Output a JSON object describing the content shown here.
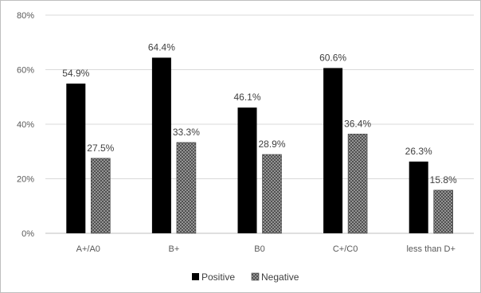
{
  "chart_data": {
    "type": "bar",
    "categories": [
      "A+/A0",
      "B+",
      "B0",
      "C+/C0",
      "less than D+"
    ],
    "series": [
      {
        "name": "Positive",
        "values": [
          54.9,
          64.4,
          46.1,
          60.6,
          26.3
        ],
        "labels": [
          "54.9%",
          "64.4%",
          "46.1%",
          "60.6%",
          "26.3%"
        ],
        "color": "#000000",
        "pattern": "solid"
      },
      {
        "name": "Negative",
        "values": [
          27.5,
          33.3,
          28.9,
          36.4,
          15.8
        ],
        "labels": [
          "27.5%",
          "33.3%",
          "28.9%",
          "36.4%",
          "15.8%"
        ],
        "color": "#7f7f7f",
        "pattern": "crosshatch"
      }
    ],
    "yticks": [
      0,
      20,
      40,
      60,
      80
    ],
    "ytick_labels": [
      "0%",
      "20%",
      "40%",
      "60%",
      "80%"
    ],
    "ylim": [
      0,
      80
    ],
    "grid": true,
    "legend_position": "bottom",
    "title": "",
    "xlabel": "",
    "ylabel": ""
  }
}
